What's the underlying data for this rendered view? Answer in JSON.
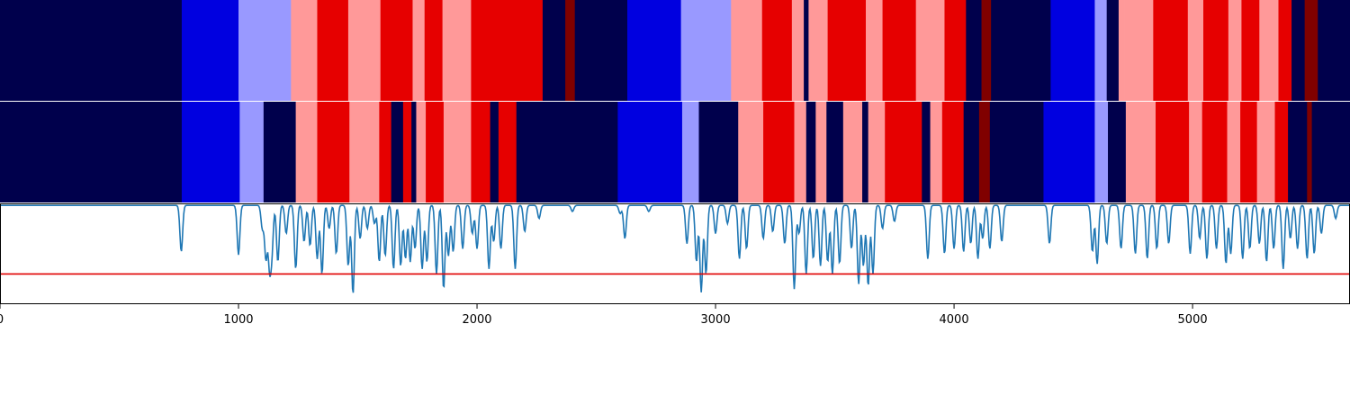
{
  "chart_data": {
    "type": "heatmap",
    "x_range": [
      0,
      5660
    ],
    "x_ticks": [
      0,
      1000,
      2000,
      3000,
      4000,
      5000
    ],
    "x_tick_labels": [
      "0",
      "1000",
      "2000",
      "3000",
      "4000",
      "5000"
    ],
    "state_colors": {
      "0": "#00004c",
      "1": "#0000e0",
      "2": "#9999ff",
      "3": "#ff9999",
      "4": "#e60000",
      "5": "#800000"
    },
    "tracks": [
      {
        "segments": [
          [
            0,
            762,
            0
          ],
          [
            762,
            1000,
            1
          ],
          [
            1000,
            1220,
            2
          ],
          [
            1220,
            1330,
            3
          ],
          [
            1330,
            1460,
            4
          ],
          [
            1460,
            1595,
            3
          ],
          [
            1595,
            1730,
            4
          ],
          [
            1730,
            1780,
            3
          ],
          [
            1780,
            1855,
            4
          ],
          [
            1855,
            1975,
            3
          ],
          [
            1975,
            2275,
            4
          ],
          [
            2275,
            2370,
            0
          ],
          [
            2370,
            2410,
            5
          ],
          [
            2410,
            2630,
            0
          ],
          [
            2630,
            2855,
            1
          ],
          [
            2855,
            3065,
            2
          ],
          [
            3065,
            3195,
            3
          ],
          [
            3195,
            3320,
            4
          ],
          [
            3320,
            3370,
            3
          ],
          [
            3370,
            3390,
            0
          ],
          [
            3390,
            3470,
            3
          ],
          [
            3470,
            3630,
            4
          ],
          [
            3630,
            3700,
            3
          ],
          [
            3700,
            3840,
            4
          ],
          [
            3840,
            3960,
            3
          ],
          [
            3960,
            4050,
            4
          ],
          [
            4050,
            4115,
            0
          ],
          [
            4115,
            4155,
            5
          ],
          [
            4155,
            4405,
            0
          ],
          [
            4405,
            4590,
            1
          ],
          [
            4590,
            4640,
            2
          ],
          [
            4640,
            4690,
            0
          ],
          [
            4690,
            4715,
            3
          ],
          [
            4715,
            4835,
            3
          ],
          [
            4835,
            4980,
            4
          ],
          [
            4980,
            5045,
            3
          ],
          [
            5045,
            5150,
            4
          ],
          [
            5150,
            5205,
            3
          ],
          [
            5205,
            5280,
            4
          ],
          [
            5280,
            5360,
            3
          ],
          [
            5360,
            5415,
            4
          ],
          [
            5415,
            5470,
            0
          ],
          [
            5470,
            5525,
            5
          ],
          [
            5525,
            5660,
            0
          ]
        ]
      },
      {
        "segments": [
          [
            0,
            762,
            0
          ],
          [
            762,
            1005,
            1
          ],
          [
            1005,
            1105,
            2
          ],
          [
            1105,
            1240,
            0
          ],
          [
            1240,
            1330,
            3
          ],
          [
            1330,
            1465,
            4
          ],
          [
            1465,
            1590,
            3
          ],
          [
            1590,
            1640,
            4
          ],
          [
            1640,
            1690,
            0
          ],
          [
            1690,
            1725,
            4
          ],
          [
            1725,
            1745,
            0
          ],
          [
            1745,
            1785,
            3
          ],
          [
            1785,
            1860,
            4
          ],
          [
            1860,
            1975,
            3
          ],
          [
            1975,
            2055,
            4
          ],
          [
            2055,
            2090,
            0
          ],
          [
            2090,
            2165,
            4
          ],
          [
            2165,
            2590,
            0
          ],
          [
            2590,
            2860,
            1
          ],
          [
            2860,
            2930,
            2
          ],
          [
            2930,
            3095,
            0
          ],
          [
            3095,
            3200,
            3
          ],
          [
            3200,
            3330,
            4
          ],
          [
            3330,
            3380,
            3
          ],
          [
            3380,
            3420,
            0
          ],
          [
            3420,
            3465,
            3
          ],
          [
            3465,
            3535,
            0
          ],
          [
            3535,
            3615,
            3
          ],
          [
            3615,
            3640,
            0
          ],
          [
            3640,
            3710,
            3
          ],
          [
            3710,
            3865,
            4
          ],
          [
            3865,
            3900,
            0
          ],
          [
            3900,
            3950,
            3
          ],
          [
            3950,
            4040,
            4
          ],
          [
            4040,
            4105,
            0
          ],
          [
            4105,
            4150,
            5
          ],
          [
            4150,
            4375,
            0
          ],
          [
            4375,
            4590,
            1
          ],
          [
            4590,
            4645,
            2
          ],
          [
            4645,
            4720,
            0
          ],
          [
            4720,
            4845,
            3
          ],
          [
            4845,
            4985,
            4
          ],
          [
            4985,
            5040,
            3
          ],
          [
            5040,
            5145,
            4
          ],
          [
            5145,
            5200,
            3
          ],
          [
            5200,
            5270,
            4
          ],
          [
            5270,
            5345,
            3
          ],
          [
            5345,
            5400,
            4
          ],
          [
            5400,
            5480,
            0
          ],
          [
            5480,
            5500,
            5
          ],
          [
            5500,
            5660,
            0
          ]
        ]
      }
    ],
    "line_series": {
      "color": "#1f77b4",
      "y_range": [
        0,
        1
      ],
      "baseline": 0.98,
      "dips": [
        [
          760,
          0.52
        ],
        [
          1000,
          0.49
        ],
        [
          1100,
          0.75
        ],
        [
          1115,
          0.45
        ],
        [
          1130,
          0.4
        ],
        [
          1140,
          0.55
        ],
        [
          1165,
          0.42
        ],
        [
          1200,
          0.7
        ],
        [
          1240,
          0.35
        ],
        [
          1275,
          0.62
        ],
        [
          1300,
          0.58
        ],
        [
          1330,
          0.45
        ],
        [
          1350,
          0.3
        ],
        [
          1380,
          0.75
        ],
        [
          1410,
          0.5
        ],
        [
          1460,
          0.38
        ],
        [
          1480,
          0.1
        ],
        [
          1510,
          0.65
        ],
        [
          1540,
          0.75
        ],
        [
          1570,
          0.8
        ],
        [
          1590,
          0.42
        ],
        [
          1615,
          0.48
        ],
        [
          1650,
          0.35
        ],
        [
          1680,
          0.38
        ],
        [
          1700,
          0.45
        ],
        [
          1720,
          0.42
        ],
        [
          1740,
          0.55
        ],
        [
          1770,
          0.35
        ],
        [
          1790,
          0.42
        ],
        [
          1830,
          0.3
        ],
        [
          1860,
          0.15
        ],
        [
          1880,
          0.48
        ],
        [
          1900,
          0.52
        ],
        [
          1940,
          0.55
        ],
        [
          1980,
          0.7
        ],
        [
          2000,
          0.55
        ],
        [
          2050,
          0.35
        ],
        [
          2070,
          0.62
        ],
        [
          2100,
          0.55
        ],
        [
          2160,
          0.35
        ],
        [
          2200,
          0.72
        ],
        [
          2260,
          0.85
        ],
        [
          2400,
          0.92
        ],
        [
          2600,
          0.9
        ],
        [
          2620,
          0.65
        ],
        [
          2720,
          0.92
        ],
        [
          2880,
          0.6
        ],
        [
          2920,
          0.42
        ],
        [
          2940,
          0.12
        ],
        [
          2960,
          0.3
        ],
        [
          3000,
          0.7
        ],
        [
          3050,
          0.8
        ],
        [
          3100,
          0.45
        ],
        [
          3130,
          0.55
        ],
        [
          3200,
          0.65
        ],
        [
          3240,
          0.72
        ],
        [
          3290,
          0.6
        ],
        [
          3330,
          0.15
        ],
        [
          3350,
          0.7
        ],
        [
          3380,
          0.3
        ],
        [
          3410,
          0.45
        ],
        [
          3440,
          0.38
        ],
        [
          3470,
          0.42
        ],
        [
          3490,
          0.3
        ],
        [
          3520,
          0.4
        ],
        [
          3570,
          0.55
        ],
        [
          3600,
          0.2
        ],
        [
          3620,
          0.38
        ],
        [
          3640,
          0.18
        ],
        [
          3660,
          0.3
        ],
        [
          3700,
          0.75
        ],
        [
          3750,
          0.82
        ],
        [
          3890,
          0.45
        ],
        [
          3960,
          0.5
        ],
        [
          4000,
          0.55
        ],
        [
          4040,
          0.52
        ],
        [
          4070,
          0.6
        ],
        [
          4100,
          0.45
        ],
        [
          4120,
          0.65
        ],
        [
          4150,
          0.55
        ],
        [
          4200,
          0.62
        ],
        [
          4400,
          0.6
        ],
        [
          4580,
          0.52
        ],
        [
          4600,
          0.4
        ],
        [
          4640,
          0.6
        ],
        [
          4700,
          0.55
        ],
        [
          4760,
          0.5
        ],
        [
          4810,
          0.45
        ],
        [
          4850,
          0.55
        ],
        [
          4900,
          0.6
        ],
        [
          4990,
          0.5
        ],
        [
          5030,
          0.65
        ],
        [
          5060,
          0.45
        ],
        [
          5100,
          0.55
        ],
        [
          5140,
          0.4
        ],
        [
          5160,
          0.5
        ],
        [
          5210,
          0.45
        ],
        [
          5240,
          0.55
        ],
        [
          5280,
          0.6
        ],
        [
          5310,
          0.42
        ],
        [
          5340,
          0.55
        ],
        [
          5380,
          0.35
        ],
        [
          5410,
          0.65
        ],
        [
          5440,
          0.55
        ],
        [
          5480,
          0.45
        ],
        [
          5510,
          0.5
        ],
        [
          5540,
          0.7
        ],
        [
          5600,
          0.85
        ]
      ]
    },
    "threshold": {
      "value": 0.3,
      "color": "#e00000"
    }
  }
}
